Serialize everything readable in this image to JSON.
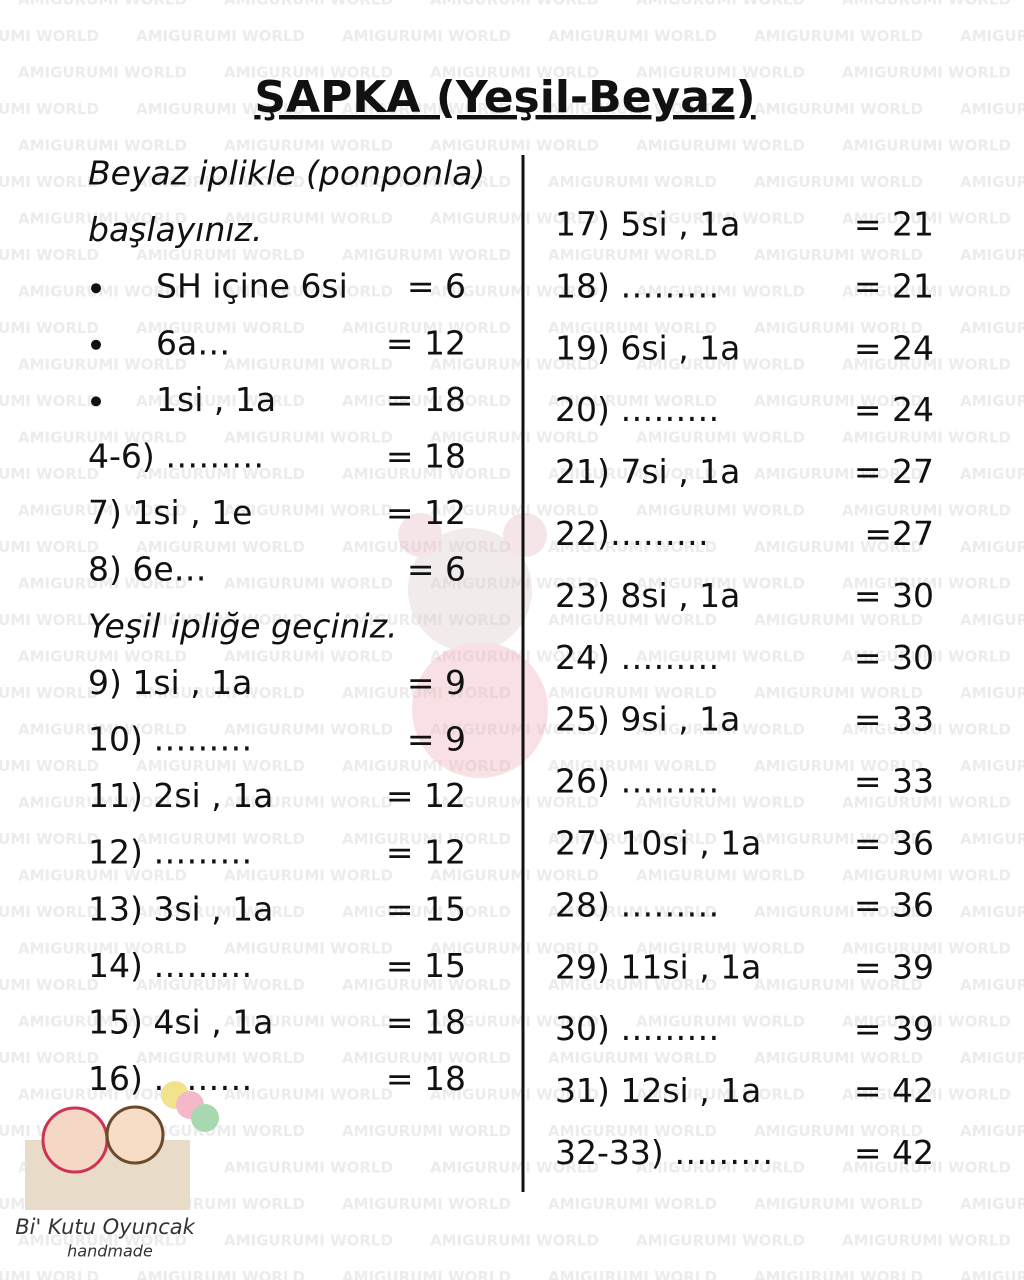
{
  "watermark": "AMIGURUMI WORLD",
  "title": "ŞAPKA (Yeşil-Beyaz)",
  "left_column": [
    {
      "text": "Beyaz iplikle (ponponla)",
      "italic": true
    },
    {
      "text": "başlayınız.",
      "italic": true
    },
    {
      "text": "SH içine  6si",
      "result": "= 6",
      "bullet": true
    },
    {
      "text": "6a…",
      "result": "= 12",
      "bullet": true
    },
    {
      "text": "1si , 1a",
      "result": "= 18",
      "bullet": true
    },
    {
      "text": "4-6) ………",
      "result": "= 18",
      "color": "#8b1f1a"
    },
    {
      "text": "7)   1si , 1e",
      "result": "= 12"
    },
    {
      "text": "8)   6e…",
      "result": "= 6"
    },
    {
      "text": "Yeşil ipliğe geçiniz.",
      "italic": true
    },
    {
      "text": "9)   1si , 1a",
      "result": "= 9"
    },
    {
      "text": "10) ………",
      "result": "= 9",
      "color": "#8b1f1a"
    },
    {
      "text": "11) 2si , 1a",
      "result": "= 12"
    },
    {
      "text": "12) ………",
      "result": "= 12",
      "color": "#8b1f1a"
    },
    {
      "text": "13) 3si , 1a",
      "result": "= 15"
    },
    {
      "text": "14) ………",
      "result": "= 15",
      "color": "#8b1f1a"
    },
    {
      "text": "15) 4si , 1a",
      "result": "= 18"
    },
    {
      "text": "16) ………",
      "result": "= 18",
      "color": "#8b1f1a"
    }
  ],
  "right_column": [
    {
      "text": "17)  5si , 1a",
      "result": "= 21"
    },
    {
      "text": "18)  ………",
      "result": "= 21",
      "color": "#8b1f1a"
    },
    {
      "text": "19) 6si , 1a",
      "result": "= 24"
    },
    {
      "text": "20) ………",
      "result": "= 24",
      "color": "#8b1f1a"
    },
    {
      "text": "21)  7si , 1a",
      "result": "= 27"
    },
    {
      "text": "22)………",
      "result": "=27",
      "color": "#8b1f1a"
    },
    {
      "text": "23)  8si , 1a",
      "result": "= 30"
    },
    {
      "text": "24) ………",
      "result": "= 30",
      "color": "#8b1f1a"
    },
    {
      "text": "25)  9si , 1a",
      "result": "= 33"
    },
    {
      "text": "26) ………",
      "result": "= 33",
      "color": "#8b1f1a"
    },
    {
      "text": "27) 10si , 1a",
      "result": "= 36"
    },
    {
      "text": "28) ………",
      "result": "= 36",
      "color": "#8b1f1a"
    },
    {
      "text": "29) 11si , 1a",
      "result": "= 39"
    },
    {
      "text": "30)  ………",
      "result": "= 39",
      "color": "#8b1f1a"
    },
    {
      "text": "31) 12si , 1a",
      "result": "= 42"
    },
    {
      "text": "32-33)  ………",
      "result": "= 42",
      "color": "#8b1f1a"
    }
  ],
  "logo": {
    "name": "Bi' Kutu Oyuncak",
    "tagline": "handmade"
  }
}
